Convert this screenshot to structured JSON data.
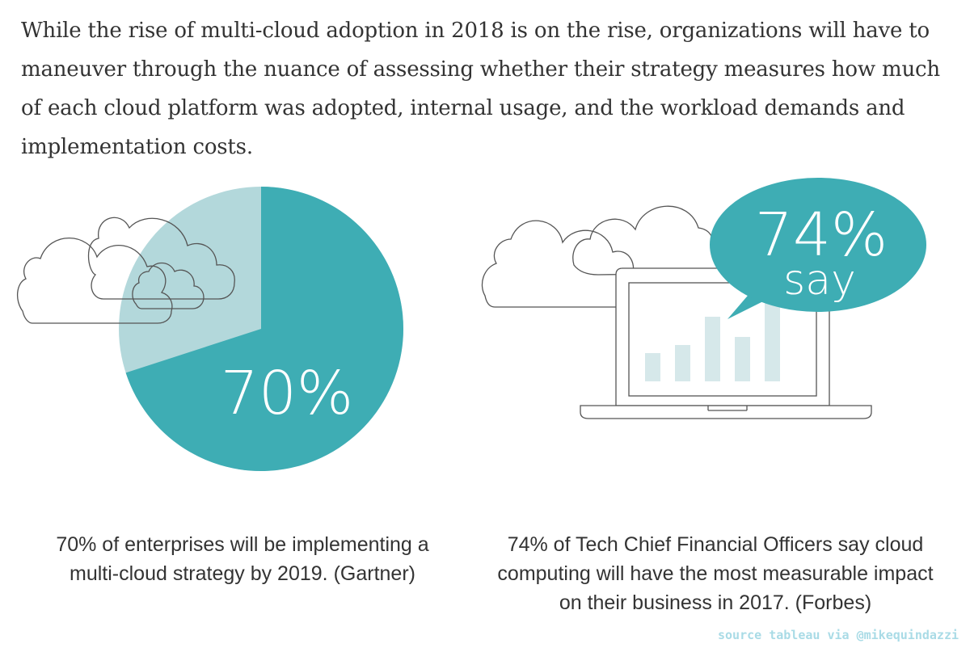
{
  "intro_text": "While the rise of multi-cloud adoption in 2018 is on the rise, organizations will have to maneuver through the nuance of assessing whether their strategy measures how much of each cloud platform was adopted, internal usage, and the workload demands and implementation costs.",
  "left_panel": {
    "stat": "70%",
    "value": 70,
    "caption": "70% of enterprises will be implementing a multi-cloud strategy by 2019. (Gartner)"
  },
  "right_panel": {
    "stat": "74%",
    "stat_sub": "say",
    "value": 74,
    "bars": [
      35,
      45,
      80,
      55,
      100
    ],
    "caption": "74% of Tech Chief Financial Officers say cloud computing will have the most measurable impact on their business in 2017. (Forbes)"
  },
  "source": "source tableau via @mikequindazzi",
  "colors": {
    "teal": "#3eadb4",
    "teal_light": "#b3d8db",
    "bar": "#d6e8ea",
    "outline": "#555555"
  }
}
